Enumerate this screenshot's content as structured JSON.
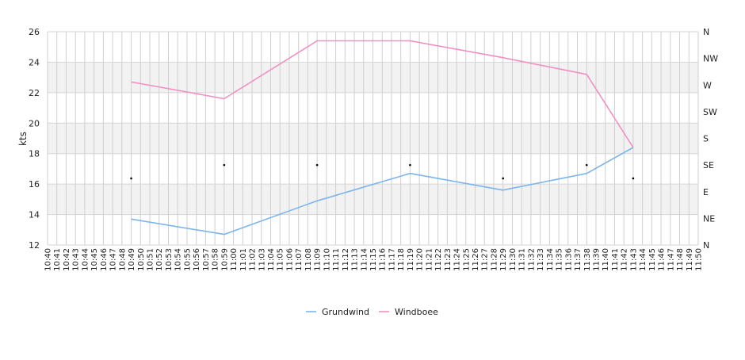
{
  "chart_data": {
    "type": "line",
    "ylabel": "kts",
    "ylim": [
      12,
      26
    ],
    "y_ticks": [
      12,
      14,
      16,
      18,
      20,
      22,
      24,
      26
    ],
    "x_ticks": [
      "10:40",
      "10:41",
      "10:42",
      "10:43",
      "10:44",
      "10:45",
      "10:46",
      "10:47",
      "10:48",
      "10:49",
      "10:50",
      "10:51",
      "10:52",
      "10:53",
      "10:54",
      "10:55",
      "10:56",
      "10:57",
      "10:58",
      "10:59",
      "11:00",
      "11:01",
      "11:02",
      "11:03",
      "11:04",
      "11:05",
      "11:06",
      "11:07",
      "11:08",
      "11:09",
      "11:10",
      "11:11",
      "11:12",
      "11:13",
      "11:14",
      "11:15",
      "11:16",
      "11:17",
      "11:18",
      "11:19",
      "11:20",
      "11:21",
      "11:22",
      "11:23",
      "11:24",
      "11:25",
      "11:26",
      "11:27",
      "11:28",
      "11:29",
      "11:30",
      "11:31",
      "11:32",
      "11:33",
      "11:34",
      "11:35",
      "11:36",
      "11:37",
      "11:38",
      "11:39",
      "11:40",
      "11:41",
      "11:42",
      "11:43",
      "11:44",
      "11:45",
      "11:46",
      "11:47",
      "11:48",
      "11:49",
      "11:50"
    ],
    "right_axis": {
      "labels": [
        "N",
        "NE",
        "E",
        "SE",
        "S",
        "SW",
        "W",
        "NW",
        "N"
      ],
      "degrees": [
        0,
        45,
        90,
        135,
        180,
        225,
        270,
        315,
        360
      ]
    },
    "grid": true,
    "band_colors": [
      "#f2f2f2",
      "#ffffff"
    ],
    "legend_position": "bottom-center",
    "series": [
      {
        "name": "Grundwind",
        "color": "#7cb5ec",
        "x": [
          "10:49",
          "10:59",
          "11:09",
          "11:19",
          "11:29",
          "11:38",
          "11:43"
        ],
        "values": [
          13.7,
          12.7,
          14.9,
          16.7,
          15.6,
          16.7,
          18.4
        ]
      },
      {
        "name": "Windboee",
        "color": "#f28fc0",
        "x": [
          "10:49",
          "10:59",
          "11:09",
          "11:19",
          "11:29",
          "11:38",
          "11:43"
        ],
        "values": [
          22.7,
          21.6,
          25.4,
          25.4,
          24.3,
          23.2,
          18.4
        ]
      }
    ],
    "direction": {
      "x": [
        "10:49",
        "10:59",
        "11:09",
        "11:19",
        "11:29",
        "11:38",
        "11:43"
      ],
      "degrees": [
        112.5,
        135,
        135,
        135,
        112.5,
        135,
        112.5
      ]
    }
  }
}
